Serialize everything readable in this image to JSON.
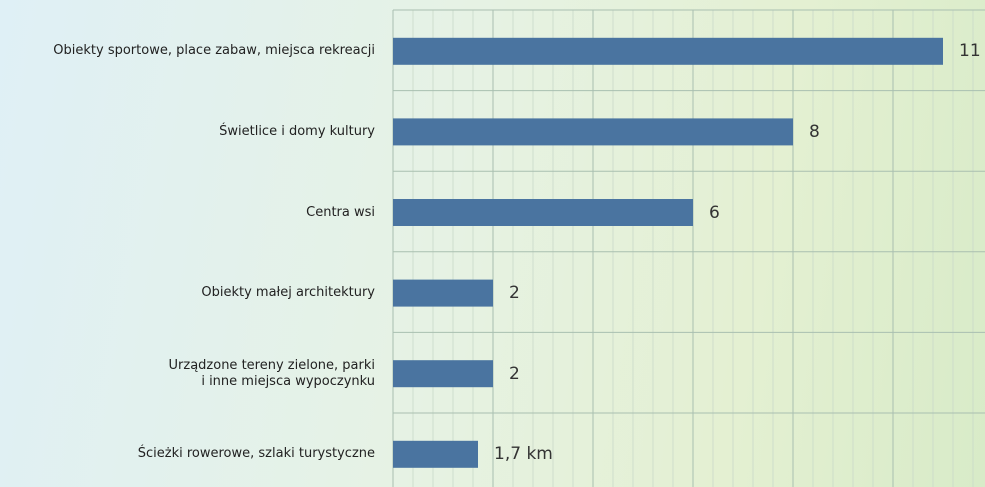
{
  "chart_data": {
    "type": "barh",
    "categories": [
      "Obiekty sportowe, place zabaw, miejsca rekreacji",
      "Świetlice i domy kultury",
      "Centra wsi",
      "Obiekty małej architektury",
      "Urządzone tereny zielone, parki\ni inne miejsca wypoczynku",
      "Ścieżki rowerowe, szlaki turystyczne"
    ],
    "values": [
      11,
      8,
      6,
      2,
      2,
      1.7
    ],
    "value_labels": [
      "11",
      "8",
      "6",
      "2",
      "2",
      "1,7 km"
    ],
    "color": "#4a74a0",
    "xlim": [
      0,
      11.84
    ],
    "xticks": [
      0,
      2,
      4,
      6,
      8,
      10
    ],
    "grid": true
  }
}
